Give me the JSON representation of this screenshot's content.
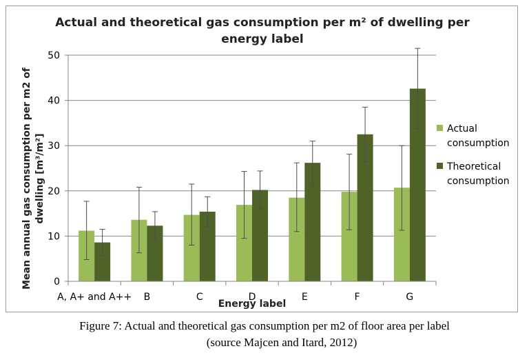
{
  "colors": {
    "actual": "#9bbb59",
    "theoretical": "#4f6228",
    "grid": "#868686",
    "error_bar": "#4d4d4d",
    "axis_text": "#000000"
  },
  "chart_data": {
    "type": "bar",
    "title_line1": "Actual and theoretical gas consumption per m² of dwelling per",
    "title_line2": "energy label",
    "xlabel": "Energy label",
    "ylabel": "Mean annual gas consumption per m2 of dwelling [m³/m²]",
    "ylim": [
      0,
      50
    ],
    "yticks": [
      0,
      10,
      20,
      30,
      40,
      50
    ],
    "grid": true,
    "legend_position": "right",
    "categories": [
      "A, A+ and A++",
      "B",
      "C",
      "D",
      "E",
      "F",
      "G"
    ],
    "series": [
      {
        "name": "Actual consumption",
        "legend_lines": [
          "Actual",
          "consumption"
        ],
        "color_key": "actual",
        "values": [
          11.2,
          13.6,
          14.7,
          16.9,
          18.5,
          19.8,
          20.7
        ],
        "error_low": [
          4.8,
          6.3,
          8.0,
          9.5,
          11.0,
          11.4,
          11.3
        ],
        "error_high": [
          17.7,
          20.8,
          21.5,
          24.3,
          26.2,
          28.1,
          30.0
        ]
      },
      {
        "name": "Theoretical consumption",
        "legend_lines": [
          "Theoretical",
          "consumption"
        ],
        "color_key": "theoretical",
        "values": [
          8.6,
          12.3,
          15.4,
          20.2,
          26.2,
          32.5,
          42.6
        ],
        "error_low": [
          5.7,
          9.2,
          12.0,
          15.9,
          21.0,
          26.4,
          33.7
        ],
        "error_high": [
          11.5,
          15.4,
          18.7,
          24.4,
          31.0,
          38.5,
          51.5
        ]
      }
    ]
  },
  "caption": {
    "line1": "Figure 7: Actual and theoretical gas consumption per m2 of floor area per label",
    "line2": "(source Majcen and Itard, 2012)"
  }
}
